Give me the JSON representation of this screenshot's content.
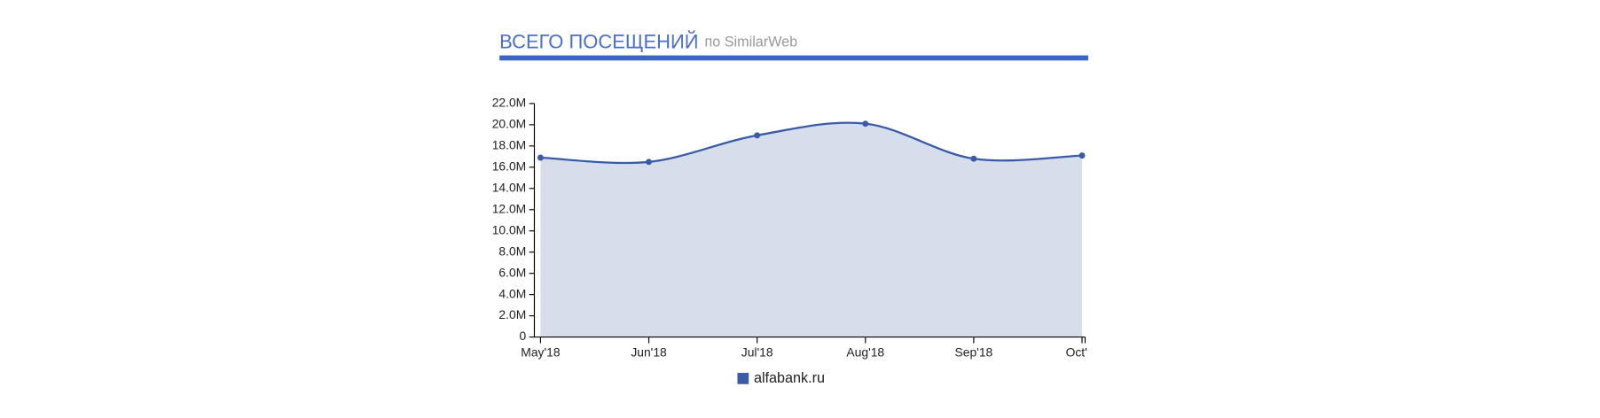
{
  "chart_data": {
    "type": "area",
    "title": "ВСЕГО ПОСЕЩЕНИЙ",
    "subtitle": "по SimilarWeb",
    "categories": [
      "May'18",
      "Jun'18",
      "Jul'18",
      "Aug'18",
      "Sep'18",
      "Oct'"
    ],
    "series": [
      {
        "name": "alfabank.ru",
        "color": "#3a5ba8",
        "values": [
          16900000,
          16500000,
          19000000,
          20100000,
          16800000,
          17100000
        ]
      }
    ],
    "ylim": [
      0,
      22000000
    ],
    "yticks": [
      0,
      {
        "value": 2000000,
        "label": "2.0M"
      },
      {
        "value": 4000000,
        "label": "4.0M"
      },
      {
        "value": 6000000,
        "label": "6.0M"
      },
      {
        "value": 8000000,
        "label": "8.0M"
      },
      {
        "value": 10000000,
        "label": "10.0M"
      },
      {
        "value": 12000000,
        "label": "12.0M"
      },
      {
        "value": 14000000,
        "label": "14.0M"
      },
      {
        "value": 16000000,
        "label": "16.0M"
      },
      {
        "value": 18000000,
        "label": "18.0M"
      },
      {
        "value": 20000000,
        "label": "20.0M"
      },
      {
        "value": 22000000,
        "label": "22.0M"
      }
    ],
    "grid": false
  }
}
